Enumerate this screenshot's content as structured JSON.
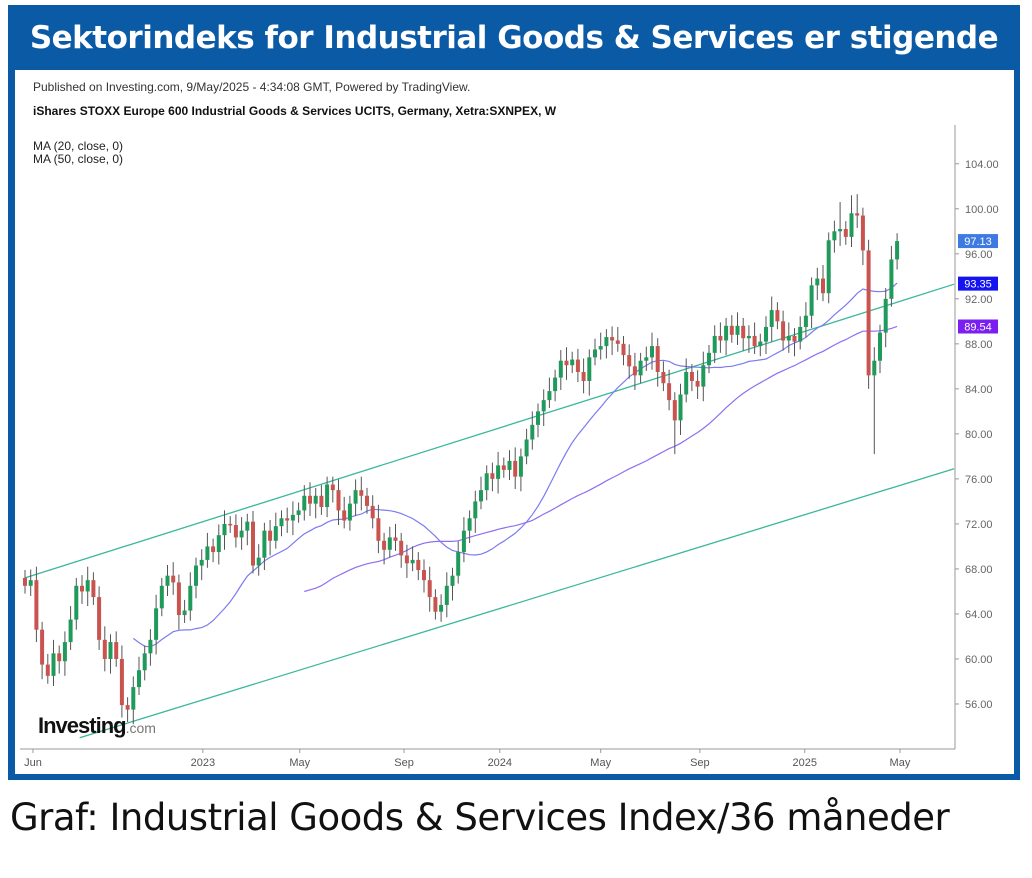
{
  "title": "Sektorindeks for Industrial Goods & Services er stigende",
  "caption": "Graf: Industrial Goods & Services Index/36 måneder",
  "logo": {
    "main": "Investing",
    "domain": ".com"
  },
  "colors": {
    "frame": "#0b5aa6",
    "up": "#1f9a5a",
    "down": "#c9534f",
    "ma20": "#7b7bf0",
    "ma50": "#8f6ff0",
    "channel": "#3bb79a",
    "label_last": "#3d7be3",
    "label_ma20": "#1414f0",
    "label_ma50": "#7a1ff0"
  },
  "chart_data": {
    "type": "candlestick",
    "published": "Published on Investing.com, 9/May/2025 - 4:34:08 GMT, Powered by TradingView.",
    "title": "iShares STOXX Europe 600 Industrial Goods & Services UCITS, Germany, Xetra:SXNPEX, W",
    "indicators": [
      "MA (20, close, 0)",
      "MA (50, close, 0)"
    ],
    "interval": "weekly",
    "ylim": [
      52,
      107
    ],
    "yticks": [
      56,
      60,
      64,
      68,
      72,
      76,
      80,
      84,
      88,
      92,
      96,
      100,
      104
    ],
    "ytick_labels": [
      "56.00",
      "60.00",
      "64.00",
      "68.00",
      "72.00",
      "76.00",
      "80.00",
      "84.00",
      "88.00",
      "92.00",
      "96.00",
      "100.00",
      "104.00"
    ],
    "xlim_weeks": [
      -1,
      163
    ],
    "xticks": [
      {
        "label": "Jun",
        "week": 1.4
      },
      {
        "label": "2023",
        "week": 31.2
      },
      {
        "label": "May",
        "week": 48.2
      },
      {
        "label": "Sep",
        "week": 66.5
      },
      {
        "label": "2024",
        "week": 83.3
      },
      {
        "label": "May",
        "week": 101
      },
      {
        "label": "Sep",
        "week": 118.4
      },
      {
        "label": "2025",
        "week": 136.8
      },
      {
        "label": "May",
        "week": 153.5
      }
    ],
    "closes": [
      66.5,
      67,
      62.6,
      59.5,
      58.5,
      60.5,
      59.8,
      61.5,
      63.5,
      66.5,
      66,
      67,
      65.5,
      61.7,
      60,
      61.5,
      60,
      55.9,
      55.5,
      57.5,
      59,
      60.5,
      61.7,
      64.5,
      66.5,
      67.4,
      66.8,
      63.9,
      64.3,
      66.5,
      68.3,
      68.8,
      70,
      69.5,
      71,
      72,
      71.9,
      70.8,
      71.4,
      72.2,
      68.3,
      69,
      71.4,
      70.5,
      71.8,
      72.5,
      72.3,
      72.8,
      73.2,
      74.5,
      73.8,
      74.5,
      73.5,
      75.5,
      75,
      73.2,
      72.3,
      73.8,
      75,
      74.5,
      73.6,
      72.5,
      70.5,
      69.7,
      70.8,
      70.5,
      69.2,
      68.5,
      68.8,
      67.9,
      67,
      65.5,
      64.2,
      64.8,
      66.5,
      67.4,
      69.5,
      71.4,
      72.5,
      74,
      75,
      76.5,
      76,
      77.2,
      76.8,
      77.6,
      76.2,
      78,
      79.5,
      80.8,
      82,
      83,
      83.8,
      85,
      86.5,
      86.1,
      86.6,
      85.5,
      84.7,
      86.8,
      87.5,
      87.8,
      88.6,
      88.3,
      88,
      87,
      86,
      85.2,
      86.5,
      86.8,
      87.8,
      85.5,
      84.5,
      83,
      81.2,
      83.5,
      85.5,
      84.7,
      84.2,
      86.1,
      87.2,
      88.7,
      88.3,
      89.6,
      88.8,
      89.6,
      88.5,
      88.7,
      87.8,
      88.2,
      89.5,
      91,
      90,
      88.3,
      88.7,
      88.2,
      89.5,
      90.5,
      93.2,
      93.8,
      92.5,
      97.2,
      98,
      98.2,
      97.5,
      99.6,
      99.4,
      96.3,
      85.2,
      86.5,
      89,
      92,
      95.5,
      97.13
    ],
    "first_open": 67.2,
    "low_overrides": {
      "114": 78.2,
      "148": 84.0,
      "149": 78.2,
      "17": 54.8
    },
    "high_overrides": {
      "145": 101.2,
      "146": 101.3,
      "143": 100.6,
      "53": 76.2
    },
    "channel": {
      "upper": [
        {
          "week": 0,
          "value": 67.2
        },
        {
          "week": 163,
          "value": 93.3
        }
      ],
      "lower": [
        {
          "week": 9.6,
          "value": 53
        },
        {
          "week": 163,
          "value": 76.9
        }
      ]
    },
    "price_labels": [
      {
        "name": "last-close",
        "value": 97.13,
        "text": "97.13"
      },
      {
        "name": "ma20",
        "value": 93.35,
        "text": "93.35"
      },
      {
        "name": "ma50",
        "value": 89.54,
        "text": "89.54"
      }
    ]
  }
}
